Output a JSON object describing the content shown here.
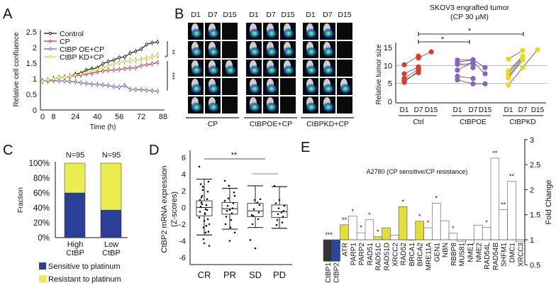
{
  "panel_labels": {
    "a": "A",
    "b": "B",
    "c": "C",
    "d": "D",
    "e": "E"
  },
  "chart_data": [
    {
      "id": "A",
      "type": "line",
      "xlabel": "Time (h)",
      "ylabel": "Relative cell confluence",
      "xticks": [
        0,
        8,
        24,
        40,
        56,
        72,
        88
      ],
      "yticks": [
        0,
        0.5,
        1,
        1.5,
        2,
        2.5
      ],
      "xlim": [
        0,
        88
      ],
      "ylim": [
        0,
        2.5
      ],
      "x": [
        0,
        4,
        8,
        12,
        16,
        20,
        24,
        28,
        32,
        36,
        40,
        44,
        48,
        52,
        56,
        60,
        64,
        68,
        72,
        76,
        80,
        84
      ],
      "series": [
        {
          "name": "Control",
          "color": "#111111",
          "marker": "circle",
          "values": [
            0.93,
            0.95,
            1.0,
            1.03,
            1.05,
            1.07,
            1.15,
            1.18,
            1.28,
            1.32,
            1.35,
            1.48,
            1.55,
            1.6,
            1.68,
            1.7,
            1.82,
            1.88,
            1.95,
            2.1,
            2.15,
            2.18
          ]
        },
        {
          "name": "CP",
          "color": "#c0394a",
          "marker": "diamond",
          "values": [
            0.93,
            0.95,
            1.0,
            1.03,
            1.05,
            1.08,
            1.1,
            1.12,
            1.15,
            1.18,
            1.22,
            1.25,
            1.27,
            1.28,
            1.3,
            1.32,
            1.35,
            1.35,
            1.42,
            1.45,
            1.48,
            1.52
          ]
        },
        {
          "name": "CtBP OE+CP",
          "color": "#7b5aa6",
          "marker": "x",
          "values": [
            0.92,
            0.93,
            0.94,
            0.93,
            0.93,
            0.91,
            0.9,
            0.87,
            0.85,
            0.82,
            0.82,
            0.8,
            0.78,
            0.75,
            0.73,
            0.78,
            0.66,
            0.65,
            0.65,
            0.63,
            0.62,
            0.6
          ]
        },
        {
          "name": "CtBP KD+CP",
          "color": "#d8cf3a",
          "marker": "triangle",
          "values": [
            0.92,
            0.96,
            1.0,
            1.03,
            1.05,
            1.08,
            1.12,
            1.15,
            1.2,
            1.25,
            1.3,
            1.35,
            1.42,
            1.48,
            1.52,
            1.55,
            1.58,
            1.6,
            1.62,
            1.66,
            1.7,
            1.75
          ]
        }
      ],
      "significance": [
        "**",
        "*",
        "***"
      ],
      "legend_placement": "top-left"
    },
    {
      "id": "B-images",
      "type": "table",
      "day_labels": [
        "D1",
        "D7",
        "D15"
      ],
      "groups": [
        {
          "name": "CP",
          "d15_present_rows": [
            3
          ]
        },
        {
          "name": "CtBPOE+CP",
          "d15_present_rows": [
            1,
            2,
            3
          ]
        },
        {
          "name": "CtBPKD+CP",
          "d15_present_rows": [
            4
          ]
        }
      ]
    },
    {
      "id": "B-scatter",
      "type": "scatter",
      "title": "SKOV3 engrafted tumor",
      "subtitle": "(CP 30 μM)",
      "ylabel": "Relative tumor size",
      "yticks": [
        0,
        5,
        10,
        15
      ],
      "ylim": [
        0,
        15.5
      ],
      "gridlines": [
        5,
        10
      ],
      "day_labels": [
        "D1",
        "D7",
        "D15"
      ],
      "groups": [
        {
          "name": "Ctrl",
          "color": "#e03a2e",
          "trajectories": [
            [
              10.2,
              12.6,
              null
            ],
            [
              7.7,
              9.6,
              null
            ],
            [
              6.4,
              9.0,
              null
            ],
            [
              5.9,
              8.0,
              null
            ],
            [
              5.3,
              8.6,
              null
            ],
            [
              null,
              12.1,
              13.8
            ]
          ]
        },
        {
          "name": "CtBPOE",
          "color": "#8a63c0",
          "trajectories": [
            [
              11.5,
              11.6,
              9.4
            ],
            [
              10.9,
              11.6,
              null
            ],
            [
              10.3,
              10.5,
              null
            ],
            [
              8.7,
              11.0,
              7.7
            ],
            [
              7.0,
              6.4,
              null
            ],
            [
              6.0,
              4.9,
              4.9
            ],
            [
              null,
              9.4,
              null
            ]
          ]
        },
        {
          "name": "CtBPKD",
          "color": "#e8d91e",
          "trajectories": [
            [
              11.8,
              14.2,
              null
            ],
            [
              8.5,
              12.6,
              null
            ],
            [
              7.8,
              12.3,
              null
            ],
            [
              7.0,
              12.0,
              null
            ],
            [
              6.5,
              11.5,
              null
            ],
            [
              4.6,
              9.4,
              14.4
            ]
          ]
        }
      ],
      "significance": [
        {
          "from": "Ctrl",
          "to": "CtBPOE",
          "label": "*"
        },
        {
          "from": "Ctrl",
          "to": "CtBPKD",
          "label": "*"
        }
      ]
    },
    {
      "id": "C",
      "type": "bar",
      "stacked": true,
      "ylabel": "Fraction",
      "yticks": [
        "0%",
        "20%",
        "40%",
        "60%",
        "80%",
        "100%"
      ],
      "categories": [
        "High CtBP",
        "Low CtBP"
      ],
      "category_lines": [
        [
          "High",
          "CtBP"
        ],
        [
          "Low",
          "CtBP"
        ]
      ],
      "n_labels": [
        "N=95",
        "N=95"
      ],
      "series": [
        {
          "name": "Sensitive to platinum",
          "color": "#2b3f98",
          "values": [
            60,
            37
          ]
        },
        {
          "name": "Resistant to platinum",
          "color": "#eceb4f",
          "values": [
            40,
            63
          ]
        }
      ],
      "legend_placement": "bottom"
    },
    {
      "id": "D",
      "type": "box",
      "ylabel": "CtBP2 mRNA expression",
      "ylabel2": "(Z-scores)",
      "yticks": [
        -6,
        -4,
        -2,
        0,
        2,
        4,
        6
      ],
      "ylim": [
        -6.5,
        6.5
      ],
      "categories": [
        "CR",
        "PR",
        "SD",
        "PD"
      ],
      "boxes": [
        {
          "min": -3.3,
          "q1": -1.0,
          "median": 0.0,
          "q3": 0.8,
          "max": 3.4,
          "points": [
            4.9,
            -4.3,
            -4.6,
            -3.8,
            3.1,
            2.5,
            1.9,
            1.4,
            1.0,
            0.6,
            0.3,
            0.1,
            -0.2,
            -0.5,
            -0.8,
            -1.2,
            -1.6,
            -2.0,
            -2.4,
            -2.9,
            2.1,
            -1.4,
            0.4,
            -0.3,
            1.2,
            -2.2,
            2.8,
            -3.0,
            0.9,
            -0.7
          ]
        },
        {
          "min": -2.6,
          "q1": -0.8,
          "median": -0.15,
          "q3": 0.6,
          "max": 2.3,
          "points": [
            3.2,
            -4.0,
            -3.0,
            2.6,
            1.8,
            1.1,
            0.5,
            0.2,
            -0.1,
            -0.4,
            -0.7,
            -1.1,
            -1.5,
            -2.0,
            -2.4,
            0.8,
            -0.3,
            1.4
          ]
        },
        {
          "min": -2.4,
          "q1": -1.1,
          "median": -0.4,
          "q3": 0.5,
          "max": 2.6,
          "points": [
            -3.9,
            -4.9,
            1.0,
            0.9,
            0.3,
            -0.2,
            -0.6,
            -1.0,
            -1.4,
            -2.0,
            0.6,
            -0.9
          ]
        },
        {
          "min": -2.5,
          "q1": -1.2,
          "median": -0.5,
          "q3": 0.3,
          "max": 2.5,
          "points": [
            2.6,
            0.9,
            0.2,
            -0.1,
            -0.4,
            -0.8,
            -1.1,
            -1.5,
            -1.8,
            -2.1,
            -0.6,
            0.5
          ]
        }
      ],
      "significance": [
        {
          "from": "CR",
          "to": "SD",
          "label": "**"
        },
        {
          "from": "SD",
          "to": "PD",
          "label": ""
        }
      ]
    },
    {
      "id": "E",
      "type": "bar",
      "title": "A2780 (CP sensitive/CP resistance)",
      "ylabel": "Fold Change",
      "yaxis_position": "right",
      "yticks": [
        0.5,
        1,
        1.5,
        2,
        2.5,
        3
      ],
      "ylim": [
        0.5,
        3
      ],
      "baseline": 1,
      "categories": [
        "CtBP1",
        "CtBP2",
        "ATR",
        "PARP1",
        "PARP2",
        "RAD51",
        "RAD51C",
        "RAD51D",
        "XRCC2",
        "RAD52",
        "BRCA1",
        "BRCA2",
        "MRE11A",
        "GEN1",
        "NBN",
        "RBBP8",
        "MUS81",
        "NME1",
        "NME2",
        "RAD54L",
        "RAD54B",
        "SHFM1",
        "DMC1",
        "XRCC3"
      ],
      "values": [
        0.57,
        0.57,
        1.3,
        1.47,
        1.14,
        1.4,
        1.06,
        1.24,
        1.09,
        1.66,
        1.0,
        1.37,
        1.24,
        1.73,
        1.38,
        1.13,
        0.97,
        0.91,
        1.29,
        1.25,
        2.63,
        1.6,
        2.17,
        0.96
      ],
      "colors": [
        "#333333",
        "#2a48a0",
        "#e3dd3c",
        "#ffffff",
        "#ffffff",
        "#ffffff",
        "#e3dd3c",
        "#e3dd3c",
        "#ffffff",
        "#e3dd3c",
        "#ffffff",
        "#e3dd3c",
        "#ffffff",
        "#ffffff",
        "#ffffff",
        "#ffffff",
        "#ffffff",
        "#ffffff",
        "#ffffff",
        "#ffffff",
        "#ffffff",
        "#ffffff",
        "#ffffff",
        "#ffffff"
      ],
      "stars": [
        "",
        "***",
        "**",
        "*",
        "*",
        "*",
        "*",
        "",
        "",
        "*",
        "",
        "*",
        "*",
        "*",
        "",
        "*",
        "",
        "",
        "",
        "*",
        "**",
        "**",
        "**",
        ""
      ]
    }
  ]
}
